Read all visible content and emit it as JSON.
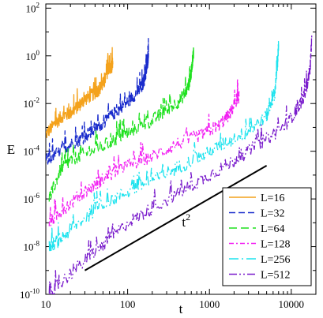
{
  "chart_data": {
    "type": "line",
    "xlabel": "t",
    "ylabel": "E",
    "xscale": "log",
    "yscale": "log",
    "xlim": [
      10,
      20000
    ],
    "ylim": [
      1e-10,
      150
    ],
    "x_ticks": [
      {
        "value": 10,
        "label": "10"
      },
      {
        "value": 100,
        "label": "100"
      },
      {
        "value": 1000,
        "label": "1000"
      },
      {
        "value": 10000,
        "label": "10000"
      }
    ],
    "y_ticks": [
      {
        "value": 1e-10,
        "mant": "10",
        "exp": "-10"
      },
      {
        "value": 1e-08,
        "mant": "10",
        "exp": "-8"
      },
      {
        "value": 1e-06,
        "mant": "10",
        "exp": "-6"
      },
      {
        "value": 0.0001,
        "mant": "10",
        "exp": "-4"
      },
      {
        "value": 0.01,
        "mant": "10",
        "exp": "-2"
      },
      {
        "value": 1,
        "mant": "10",
        "exp": "0"
      },
      {
        "value": 100,
        "mant": "10",
        "exp": "2"
      }
    ],
    "legend_position": "bottom-right",
    "series": [
      {
        "name": "L=16",
        "color": "#f4a21c",
        "dash": "none",
        "points": [
          [
            10,
            0.0005
          ],
          [
            13,
            0.0015
          ],
          [
            16,
            0.003
          ],
          [
            20,
            0.004
          ],
          [
            25,
            0.008
          ],
          [
            30,
            0.015
          ],
          [
            38,
            0.025
          ],
          [
            45,
            0.04
          ],
          [
            52,
            0.08
          ],
          [
            58,
            0.3
          ],
          [
            63,
            0.3
          ],
          [
            66,
            0.5
          ]
        ]
      },
      {
        "name": "L=32",
        "color": "#1a2ccc",
        "dash": "8 4",
        "points": [
          [
            10,
            4e-05
          ],
          [
            15,
            0.0001
          ],
          [
            20,
            0.0002
          ],
          [
            30,
            0.0004
          ],
          [
            40,
            0.0008
          ],
          [
            55,
            0.002
          ],
          [
            75,
            0.005
          ],
          [
            100,
            0.012
          ],
          [
            130,
            0.03
          ],
          [
            150,
            0.05
          ],
          [
            165,
            0.15
          ],
          [
            175,
            0.5
          ],
          [
            180,
            1.2
          ]
        ]
      },
      {
        "name": "L=64",
        "color": "#1fe11f",
        "dash": "10 5",
        "points": [
          [
            11,
            1e-06
          ],
          [
            15,
            1.5e-05
          ],
          [
            20,
            4e-05
          ],
          [
            30,
            8e-05
          ],
          [
            50,
            0.00016
          ],
          [
            80,
            0.0004
          ],
          [
            120,
            0.0008
          ],
          [
            200,
            0.002
          ],
          [
            300,
            0.005
          ],
          [
            450,
            0.015
          ],
          [
            550,
            0.05
          ],
          [
            600,
            0.2
          ],
          [
            630,
            1.0
          ],
          [
            640,
            1.4
          ]
        ]
      },
      {
        "name": "L=128",
        "color": "#f21ff2",
        "dash": "6 3 2 3",
        "points": [
          [
            11,
            1e-07
          ],
          [
            15,
            3e-07
          ],
          [
            25,
            1.2e-06
          ],
          [
            40,
            4e-06
          ],
          [
            60,
            1e-05
          ],
          [
            100,
            2.5e-05
          ],
          [
            200,
            6e-05
          ],
          [
            400,
            0.0002
          ],
          [
            800,
            0.0005
          ],
          [
            1300,
            0.0012
          ],
          [
            1800,
            0.004
          ],
          [
            2150,
            0.015
          ],
          [
            2300,
            0.02
          ]
        ]
      },
      {
        "name": "L=256",
        "color": "#1ee3ee",
        "dash": "12 4 2 4",
        "points": [
          [
            11,
            1e-08
          ],
          [
            15,
            2e-08
          ],
          [
            25,
            1e-07
          ],
          [
            50,
            6e-07
          ],
          [
            100,
            2e-06
          ],
          [
            200,
            6e-06
          ],
          [
            400,
            2e-05
          ],
          [
            800,
            6e-05
          ],
          [
            1500,
            0.0002
          ],
          [
            3000,
            0.0007
          ],
          [
            5000,
            0.003
          ],
          [
            6300,
            0.03
          ],
          [
            6800,
            0.5
          ],
          [
            7000,
            3
          ]
        ]
      },
      {
        "name": "L=512",
        "color": "#7a1ccc",
        "dash": "10 3 2 3 2 3",
        "points": [
          [
            11,
            1e-10
          ],
          [
            15,
            3e-10
          ],
          [
            30,
            2.5e-09
          ],
          [
            50,
            1.2e-08
          ],
          [
            100,
            1e-07
          ],
          [
            200,
            4e-07
          ],
          [
            500,
            2.5e-06
          ],
          [
            1000,
            1e-05
          ],
          [
            2000,
            4e-05
          ],
          [
            4000,
            0.0002
          ],
          [
            8000,
            0.001
          ],
          [
            12000,
            0.006
          ],
          [
            15000,
            0.03
          ],
          [
            17000,
            0.3
          ],
          [
            17800,
            5
          ]
        ]
      }
    ],
    "annotations": [
      {
        "type": "line",
        "from": [
          30,
          1e-09
        ],
        "to": [
          5000,
          2.5e-05
        ]
      },
      {
        "type": "text",
        "base": "t",
        "exp": "2",
        "at": [
          520,
          7e-08
        ]
      }
    ]
  }
}
